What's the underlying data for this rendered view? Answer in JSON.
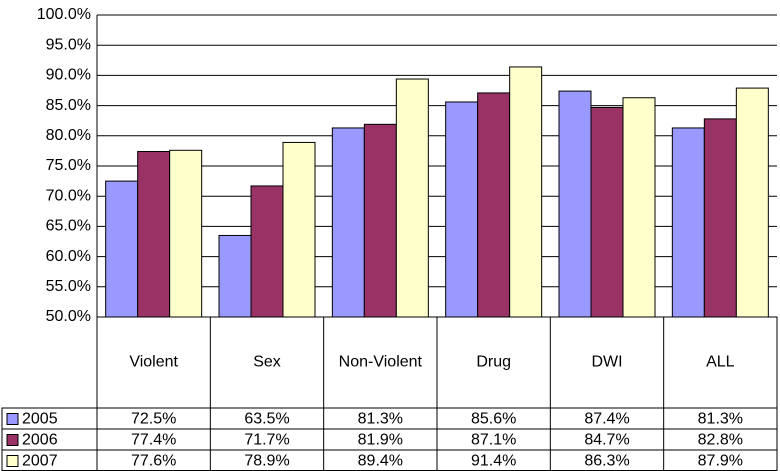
{
  "chart_data": {
    "type": "bar",
    "categories": [
      "Violent",
      "Sex",
      "Non-Violent",
      "Drug",
      "DWI",
      "ALL"
    ],
    "series": [
      {
        "name": "2005",
        "color": "#9999ff",
        "values": [
          72.5,
          63.5,
          81.3,
          85.6,
          87.4,
          81.3
        ],
        "value_labels": [
          "72.5%",
          "63.5%",
          "81.3%",
          "85.6%",
          "87.4%",
          "81.3%"
        ]
      },
      {
        "name": "2006",
        "color": "#993366",
        "values": [
          77.4,
          71.7,
          81.9,
          87.1,
          84.7,
          82.8
        ],
        "value_labels": [
          "77.4%",
          "71.7%",
          "81.9%",
          "87.1%",
          "84.7%",
          "82.8%"
        ]
      },
      {
        "name": "2007",
        "color": "#ffffcc",
        "values": [
          77.6,
          78.9,
          89.4,
          91.4,
          86.3,
          87.9
        ],
        "value_labels": [
          "77.6%",
          "78.9%",
          "89.4%",
          "91.4%",
          "86.3%",
          "87.9%"
        ]
      }
    ],
    "ylim": [
      50,
      100
    ],
    "yticks": [
      {
        "value": 50,
        "label": "50.0%"
      },
      {
        "value": 55,
        "label": "55.0%"
      },
      {
        "value": 60,
        "label": "60.0%"
      },
      {
        "value": 65,
        "label": "65.0%"
      },
      {
        "value": 70,
        "label": "70.0%"
      },
      {
        "value": 75,
        "label": "75.0%"
      },
      {
        "value": 80,
        "label": "80.0%"
      },
      {
        "value": 85,
        "label": "85.0%"
      },
      {
        "value": 90,
        "label": "90.0%"
      },
      {
        "value": 95,
        "label": "95.0%"
      },
      {
        "value": 100,
        "label": "100.0%"
      }
    ],
    "grid": true
  }
}
